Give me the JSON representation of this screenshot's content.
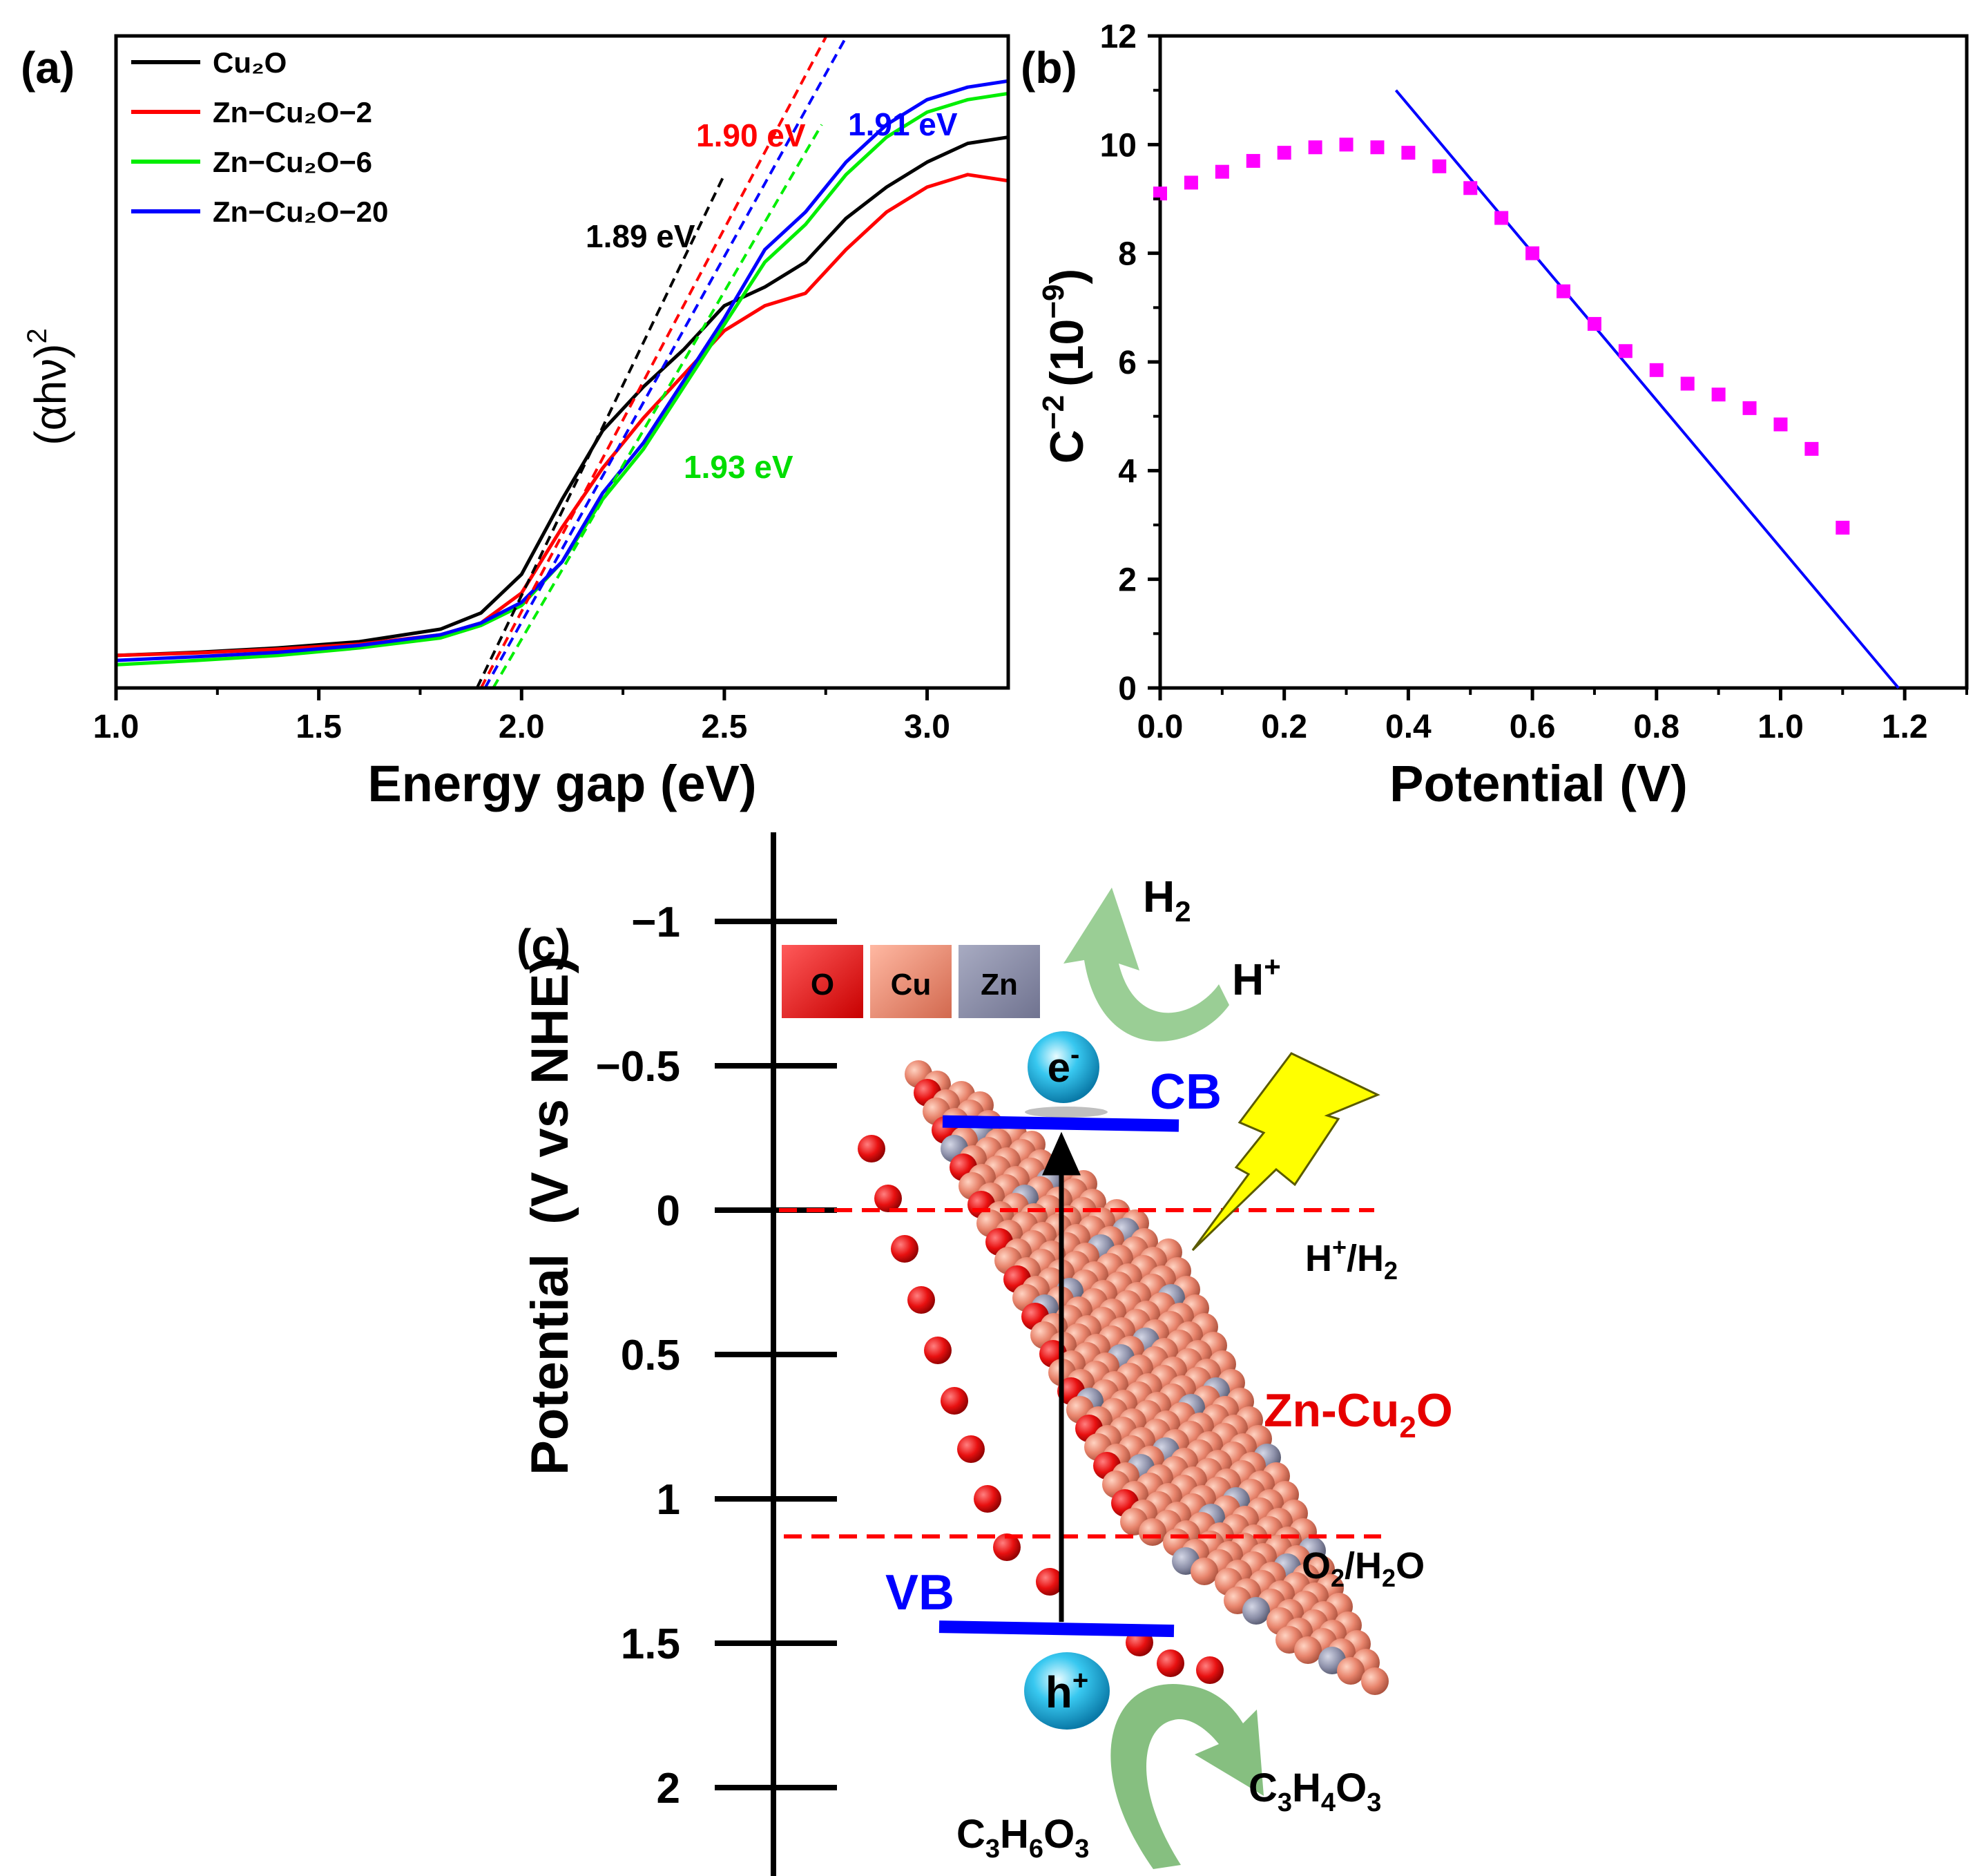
{
  "chart_data": [
    {
      "panel": "(a)",
      "type": "line",
      "xlabel": "Energy gap (eV)",
      "ylabel": "(αhν)",
      "ylabel_sup": "2",
      "xlim": [
        1.0,
        3.2
      ],
      "ylim": [
        0,
        100
      ],
      "xticks": [
        "1.0",
        "1.5",
        "2.0",
        "2.5",
        "3.0"
      ],
      "xtick_values": [
        1.0,
        1.5,
        2.0,
        2.5,
        3.0
      ],
      "legend_position": "top-left",
      "series": [
        {
          "name": "Cu₂O",
          "color": "#000000",
          "x": [
            1.0,
            1.2,
            1.4,
            1.6,
            1.8,
            1.9,
            2.0,
            2.1,
            2.2,
            2.3,
            2.4,
            2.5,
            2.6,
            2.7,
            2.8,
            2.9,
            3.0,
            3.1,
            3.2
          ],
          "y": [
            3,
            3.5,
            4.2,
            5.2,
            7.2,
            9.8,
            16,
            28,
            39,
            46,
            52,
            59,
            62,
            66,
            73,
            78,
            82,
            85,
            86
          ]
        },
        {
          "name": "Zn−Cu₂O−2",
          "color": "#ff0000",
          "x": [
            1.0,
            1.2,
            1.4,
            1.6,
            1.8,
            1.9,
            2.0,
            2.1,
            2.2,
            2.3,
            2.4,
            2.5,
            2.6,
            2.7,
            2.8,
            2.9,
            3.0,
            3.1,
            3.2
          ],
          "y": [
            3,
            3.4,
            4.0,
            4.8,
            6.3,
            8.2,
            13,
            23.5,
            33,
            41,
            48,
            55,
            59,
            61,
            68,
            74,
            78,
            80,
            79
          ]
        },
        {
          "name": "Zn−Cu₂O−6",
          "color": "#00ee00",
          "x": [
            1.0,
            1.2,
            1.4,
            1.6,
            1.8,
            1.9,
            2.0,
            2.1,
            2.2,
            2.3,
            2.4,
            2.5,
            2.6,
            2.7,
            2.8,
            2.9,
            3.0,
            3.1,
            3.2
          ],
          "y": [
            1.5,
            2.2,
            3.0,
            4.2,
            5.8,
            7.8,
            11,
            18,
            28,
            36,
            46,
            56,
            66,
            72,
            80,
            86,
            90,
            92,
            93
          ]
        },
        {
          "name": "Zn−Cu₂O−20",
          "color": "#0000ff",
          "x": [
            1.0,
            1.2,
            1.4,
            1.6,
            1.8,
            1.9,
            2.0,
            2.1,
            2.2,
            2.3,
            2.4,
            2.5,
            2.6,
            2.7,
            2.8,
            2.9,
            3.0,
            3.1,
            3.2
          ],
          "y": [
            2.2,
            2.8,
            3.5,
            4.6,
            6.3,
            8.2,
            11.5,
            18,
            29,
            37,
            47,
            57,
            68,
            74,
            82,
            88,
            92,
            94,
            95
          ]
        }
      ],
      "tangents": [
        {
          "label": "1.89 eV",
          "color": "#000000",
          "x": [
            1.89,
            2.5
          ],
          "y": [
            0,
            80
          ]
        },
        {
          "label": "1.90 eV",
          "color": "#ff0000",
          "x": [
            1.9,
            2.75
          ],
          "y": [
            0,
            102
          ]
        },
        {
          "label": "1.91 eV",
          "color": "#0000ff",
          "x": [
            1.91,
            2.8
          ],
          "y": [
            0,
            102
          ]
        },
        {
          "label": "1.93 eV",
          "color": "#00ee00",
          "x": [
            1.93,
            2.74
          ],
          "y": [
            0,
            88
          ]
        }
      ]
    },
    {
      "panel": "(b)",
      "type": "scatter",
      "xlabel": "Potential (V)",
      "ylabel_base": "C",
      "ylabel_sup": "−2",
      "ylabel_unit": "(10",
      "ylabel_unit_sup": "−9",
      "ylabel_close": ")",
      "xlim": [
        0,
        1.3
      ],
      "ylim": [
        0,
        12
      ],
      "xticks": [
        "0.0",
        "0.2",
        "0.4",
        "0.6",
        "0.8",
        "1.0",
        "1.2"
      ],
      "xtick_values": [
        0,
        0.2,
        0.4,
        0.6,
        0.8,
        1.0,
        1.2
      ],
      "yticks": [
        "0",
        "2",
        "4",
        "6",
        "8",
        "10",
        "12"
      ],
      "ytick_values": [
        0,
        2,
        4,
        6,
        8,
        10,
        12
      ],
      "marker_color": "#ff00ff",
      "x": [
        0.0,
        0.05,
        0.1,
        0.15,
        0.2,
        0.25,
        0.3,
        0.35,
        0.4,
        0.45,
        0.5,
        0.55,
        0.6,
        0.65,
        0.7,
        0.75,
        0.8,
        0.85,
        0.9,
        0.95,
        1.0,
        1.05,
        1.1
      ],
      "y": [
        9.1,
        9.3,
        9.5,
        9.7,
        9.85,
        9.95,
        10.0,
        9.95,
        9.85,
        9.6,
        9.2,
        8.65,
        8.0,
        7.3,
        6.7,
        6.2,
        5.85,
        5.6,
        5.4,
        5.15,
        4.85,
        4.4,
        2.95
      ],
      "fit_line": {
        "color": "#0000ff",
        "x": [
          0.38,
          1.19
        ],
        "y": [
          11.0,
          0.0
        ]
      }
    }
  ],
  "panel_c": {
    "label": "(c)",
    "ylabel": "Potential  (V vs NHE)",
    "ticks": [
      "−1",
      "−0.5",
      "0",
      "0.5",
      "1",
      "1.5",
      "2"
    ],
    "tick_values": [
      -1,
      -0.5,
      0,
      0.5,
      1,
      1.5,
      2
    ],
    "legend_atoms": [
      {
        "label": "O",
        "color": "#e81010"
      },
      {
        "label": "Cu",
        "color": "#e8846c"
      },
      {
        "label": "Zn",
        "color": "#8c8fa8"
      }
    ],
    "cb_label": "CB",
    "vb_label": "VB",
    "cb_potential": -0.3,
    "vb_potential": 1.45,
    "electron": "e",
    "electron_sup": "-",
    "hole": "h",
    "hole_sup": "+",
    "h2": "H",
    "h2_sub": "2",
    "hplus": "H",
    "hplus_sup": "+",
    "h_redox": {
      "part1": "H",
      "sup": "+",
      "part2": "/H",
      "sub": "2",
      "potential": 0.0
    },
    "o_redox": {
      "part1": "O",
      "sub1": "2",
      "part2": "/H",
      "sub2": "2",
      "part3": "O",
      "potential": 1.13
    },
    "material": {
      "part1": "Zn-Cu",
      "sub": "2",
      "part2": "O"
    },
    "reactant": {
      "a": "C",
      "a_sub": "3",
      "b": "H",
      "b_sub": "6",
      "c": "O",
      "c_sub": "3"
    },
    "product": {
      "a": "C",
      "a_sub": "3",
      "b": "H",
      "b_sub": "4",
      "c": "O",
      "c_sub": "3"
    },
    "colors": {
      "band": "#0000ff",
      "redox": "#ff0000",
      "material": "#e60000",
      "bolt": "#ffff00",
      "arrow": "#8fc98a"
    }
  }
}
